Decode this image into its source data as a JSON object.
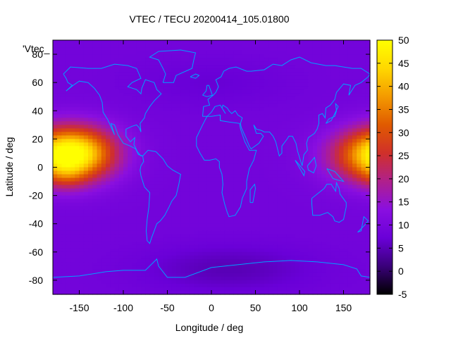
{
  "chart_data": {
    "type": "heatmap",
    "title": "VTEC / TECU 20200414_105.01800",
    "xlabel": "Longitude / deg",
    "ylabel": "Latitude / deg",
    "key_label": "'Vtec_",
    "xlim": [
      -180,
      180
    ],
    "ylim": [
      -90,
      90
    ],
    "xticks": [
      -150,
      -100,
      -50,
      0,
      50,
      100,
      150
    ],
    "yticks": [
      -80,
      -60,
      -40,
      -20,
      0,
      20,
      40,
      60,
      80
    ],
    "colorbar": {
      "range": [
        -5,
        50
      ],
      "ticks": [
        -5,
        0,
        5,
        10,
        15,
        20,
        25,
        30,
        35,
        40,
        45,
        50
      ],
      "palette": [
        "#000000",
        "#3a007a",
        "#6a00d8",
        "#8a0fe0",
        "#b0208c",
        "#d0302a",
        "#e05a00",
        "#f49a00",
        "#ffd800",
        "#ffff00"
      ]
    },
    "background_vtec": 9,
    "anomalies": [
      {
        "lon": -153,
        "lat": 10,
        "sigma_lon": 32,
        "sigma_lat": 13,
        "amplitude": 30
      },
      {
        "lon": -165,
        "lat": -6,
        "sigma_lon": 16,
        "sigma_lat": 7,
        "amplitude": 6
      },
      {
        "lon": 180,
        "lat": 8,
        "sigma_lon": 35,
        "sigma_lat": 13,
        "amplitude": 19
      },
      {
        "lon": 20,
        "lat": -72,
        "sigma_lon": 70,
        "sigma_lat": 12,
        "amplitude": -4
      },
      {
        "lon": 0,
        "lat": 60,
        "sigma_lon": 60,
        "sigma_lat": 12,
        "amplitude": -2
      }
    ],
    "coastline_color": "#00a0ff"
  }
}
